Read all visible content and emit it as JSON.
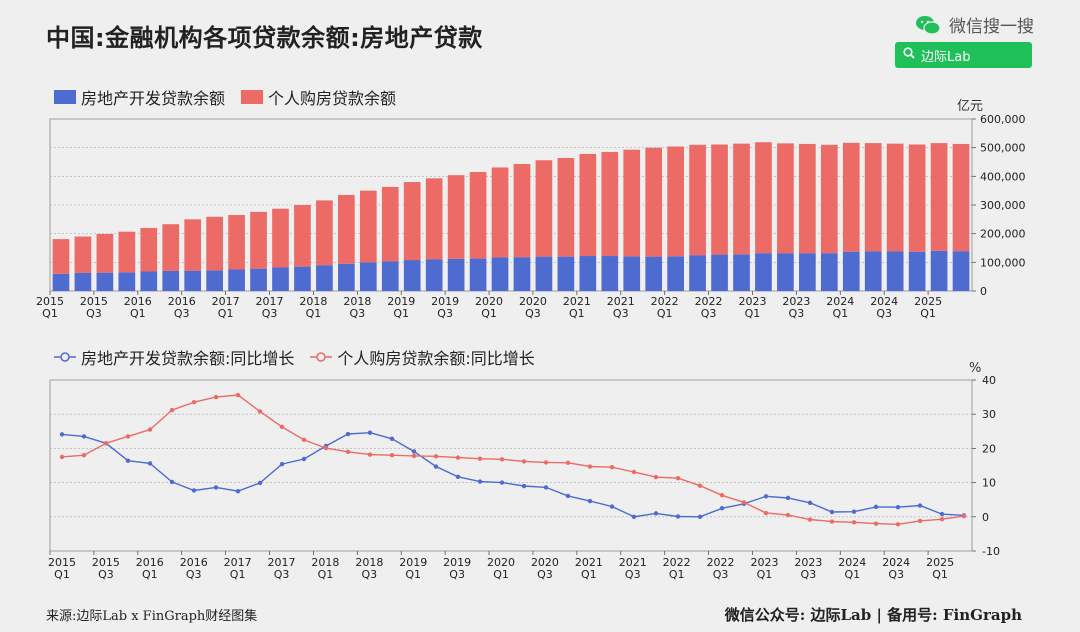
{
  "title": "中国:金融机构各项贷款余额:房地产贷款",
  "brand": {
    "text": "微信搜一搜",
    "search_label": "边际Lab"
  },
  "footer": {
    "source": "来源:边际Lab x FinGraph财经图集",
    "right": "微信公众号: 边际Lab  |  备用号: FinGraph"
  },
  "colors": {
    "dev": "#4e6bd0",
    "personal": "#ec6b67"
  },
  "chart_data": [
    {
      "type": "bar",
      "stacked": true,
      "legend": [
        "房地产开发贷款余额",
        "个人购房贷款余额"
      ],
      "unit": "亿元",
      "ylim": [
        0,
        600000
      ],
      "yticks": [
        "0",
        "100,000",
        "200,000",
        "300,000",
        "400,000",
        "500,000",
        "600,000"
      ],
      "x_tick_labels": [
        [
          "2015",
          "Q1"
        ],
        [
          "2015",
          "Q3"
        ],
        [
          "2016",
          "Q1"
        ],
        [
          "2016",
          "Q3"
        ],
        [
          "2017",
          "Q1"
        ],
        [
          "2017",
          "Q3"
        ],
        [
          "2018",
          "Q1"
        ],
        [
          "2018",
          "Q3"
        ],
        [
          "2019",
          "Q1"
        ],
        [
          "2019",
          "Q3"
        ],
        [
          "2020",
          "Q1"
        ],
        [
          "2020",
          "Q3"
        ],
        [
          "2021",
          "Q1"
        ],
        [
          "2021",
          "Q3"
        ],
        [
          "2022",
          "Q1"
        ],
        [
          "2022",
          "Q3"
        ],
        [
          "2023",
          "Q1"
        ],
        [
          "2023",
          "Q3"
        ],
        [
          "2024",
          "Q1"
        ],
        [
          "2024",
          "Q3"
        ],
        [
          "2025",
          "Q1"
        ]
      ],
      "series": [
        {
          "name": "房地产开发贷款余额",
          "values": [
            60000,
            63000,
            64000,
            65000,
            68000,
            70000,
            71000,
            72000,
            75000,
            78000,
            82000,
            85000,
            90000,
            95000,
            100000,
            103000,
            108000,
            110000,
            112000,
            113000,
            117000,
            118000,
            120000,
            120000,
            122000,
            122000,
            121000,
            120000,
            121000,
            125000,
            127000,
            128000,
            132000,
            132000,
            132000,
            132000,
            137000,
            138000,
            138000,
            137000,
            140000,
            139000
          ]
        },
        {
          "name": "个人购房贷款余额",
          "values": [
            121000,
            127000,
            135000,
            142000,
            152000,
            163000,
            179000,
            187000,
            190000,
            198000,
            205000,
            215000,
            226000,
            240000,
            250000,
            260000,
            272000,
            283000,
            292000,
            302000,
            314000,
            325000,
            336000,
            344000,
            356000,
            363000,
            372000,
            380000,
            383000,
            385000,
            384000,
            386000,
            387000,
            383000,
            381000,
            378000,
            380000,
            378000,
            376000,
            374000,
            376000,
            374000
          ]
        }
      ]
    },
    {
      "type": "line",
      "legend": [
        "房地产开发贷款余额:同比增长",
        "个人购房贷款余额:同比增长"
      ],
      "unit": "%",
      "ylim": [
        -10,
        40
      ],
      "yticks": [
        "-10",
        "0",
        "10",
        "20",
        "30",
        "40"
      ],
      "x_tick_labels": [
        [
          "2015",
          "Q1"
        ],
        [
          "2015",
          "Q3"
        ],
        [
          "2016",
          "Q1"
        ],
        [
          "2016",
          "Q3"
        ],
        [
          "2017",
          "Q1"
        ],
        [
          "2017",
          "Q3"
        ],
        [
          "2018",
          "Q1"
        ],
        [
          "2018",
          "Q3"
        ],
        [
          "2019",
          "Q1"
        ],
        [
          "2019",
          "Q3"
        ],
        [
          "2020",
          "Q1"
        ],
        [
          "2020",
          "Q3"
        ],
        [
          "2021",
          "Q1"
        ],
        [
          "2021",
          "Q3"
        ],
        [
          "2022",
          "Q1"
        ],
        [
          "2022",
          "Q3"
        ],
        [
          "2023",
          "Q1"
        ],
        [
          "2023",
          "Q3"
        ],
        [
          "2024",
          "Q1"
        ],
        [
          "2024",
          "Q3"
        ],
        [
          "2025",
          "Q1"
        ]
      ],
      "series": [
        {
          "name": "房地产开发贷款余额:同比增长",
          "values": [
            24.1,
            23.5,
            21.5,
            16.4,
            15.6,
            10.2,
            7.7,
            8.6,
            7.5,
            9.9,
            15.4,
            16.9,
            20.7,
            24.2,
            24.6,
            22.8,
            19.1,
            14.7,
            11.7,
            10.3,
            10.0,
            9.0,
            8.6,
            6.1,
            4.6,
            3.0,
            0.0,
            1.0,
            0.1,
            0.0,
            2.5,
            3.8,
            6.0,
            5.5,
            4.1,
            1.4,
            1.5,
            2.9,
            2.8,
            3.3,
            0.8,
            0.4
          ]
        },
        {
          "name": "个人购房贷款余额:同比增长",
          "values": [
            17.5,
            18.0,
            21.5,
            23.5,
            25.5,
            31.2,
            33.5,
            35.0,
            35.6,
            30.8,
            26.3,
            22.5,
            20.1,
            19.0,
            18.2,
            18.0,
            17.8,
            17.7,
            17.3,
            17.0,
            16.8,
            16.2,
            15.9,
            15.8,
            14.7,
            14.5,
            13.1,
            11.6,
            11.3,
            9.1,
            6.3,
            4.2,
            1.1,
            0.5,
            -0.8,
            -1.4,
            -1.6,
            -2.0,
            -2.2,
            -1.2,
            -0.7,
            0.2
          ]
        }
      ]
    }
  ]
}
